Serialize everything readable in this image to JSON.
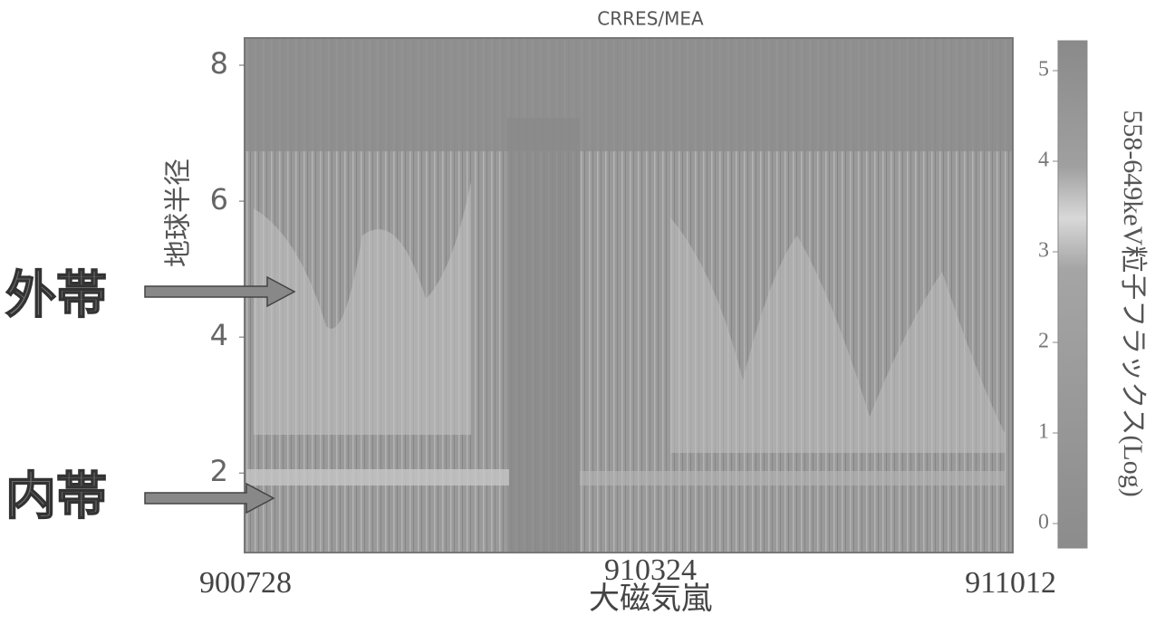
{
  "chart_data": {
    "type": "heatmap",
    "title": "CRRES/MEA",
    "ylabel": "地球半径",
    "ylim": [
      0.83,
      8.4
    ],
    "yticks": [
      2,
      4,
      6,
      8
    ],
    "categories": [
      "900728",
      "910324",
      "911012"
    ],
    "xlabel": "大磁気嵐",
    "colorbar": {
      "label": "558-649keV粒子フラックス(Log)",
      "lim": [
        -0.27,
        5.33
      ],
      "ticks": [
        0,
        1,
        2,
        3,
        4,
        5
      ]
    },
    "annotations": [
      "外帯",
      "内帯"
    ]
  }
}
